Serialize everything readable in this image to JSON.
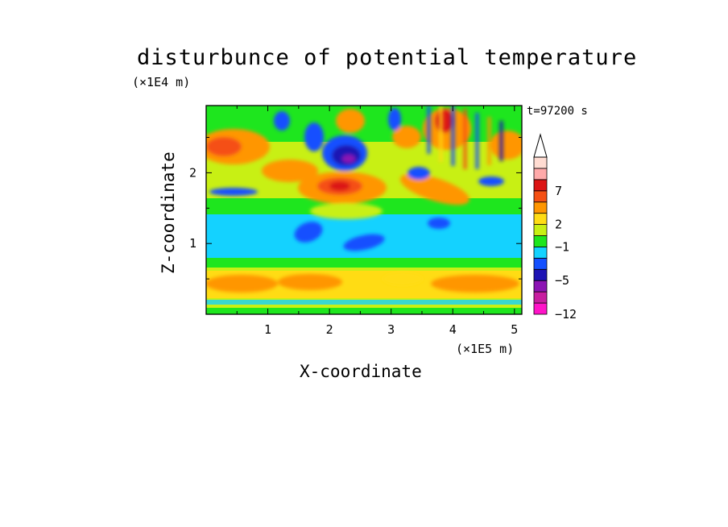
{
  "chart_data": {
    "type": "heatmap",
    "title": "disturbunce of potential temperature",
    "xlabel": "X-coordinate",
    "ylabel": "Z-coordinate",
    "x_unit": "(×1E5 m)",
    "y_unit": "(×1E4 m)",
    "time_label": "t=97200 s",
    "xlim": [
      0,
      5.12
    ],
    "ylim": [
      0,
      2.95
    ],
    "x_ticks": [
      "1",
      "2",
      "3",
      "4",
      "5"
    ],
    "y_ticks": [
      "1",
      "2"
    ],
    "colorbar": {
      "tick_labels": [
        "7",
        "2",
        "−1",
        "−5",
        "−12"
      ],
      "colors": [
        "#ff14c8",
        "#c81ea0",
        "#8c14b4",
        "#1e14b4",
        "#1450ff",
        "#14d2ff",
        "#1ee61e",
        "#c8f014",
        "#ffdc14",
        "#ff9600",
        "#f55014",
        "#dc1414",
        "#ffaaaa",
        "#ffdcd2"
      ],
      "extend": "max"
    },
    "field_description": [
      {
        "z_range": [
          0.0,
          0.1
        ],
        "level": "green/cyan"
      },
      {
        "z_range": [
          0.1,
          0.6
        ],
        "level": "yellow-orange (positive)"
      },
      {
        "z_range": [
          0.6,
          0.9
        ],
        "level": "green"
      },
      {
        "z_range": [
          0.9,
          1.5
        ],
        "level": "cyan with blue patches near x=1.5 and x=2.7"
      },
      {
        "z_range": [
          1.5,
          2.0
        ],
        "level": "green/yellow with warm band"
      },
      {
        "z_range": [
          1.8,
          2.4
        ],
        "level": "orange/red maximum near x=2.3"
      },
      {
        "z_range": [
          2.0,
          2.6
        ],
        "level": "blue/purple minimum near x=2.3, z=2.2"
      },
      {
        "z_range": [
          2.2,
          2.9
        ],
        "level": "alternating waves, orange/red near x=3.9"
      }
    ]
  }
}
